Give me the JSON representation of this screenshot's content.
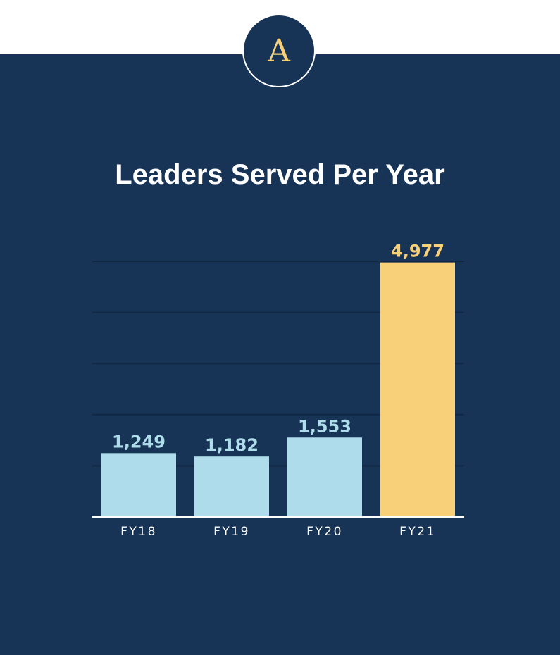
{
  "colors": {
    "background": "#173356",
    "grid": "#112845",
    "bar": "#afdcea",
    "highlight": "#f8d07a",
    "axis": "#ffffff"
  },
  "logo": {
    "letter": "A"
  },
  "chart_data": {
    "type": "bar",
    "title": "Leaders Served Per Year",
    "categories": [
      "FY18",
      "FY19",
      "FY20",
      "FY21"
    ],
    "values": [
      1249,
      1182,
      1553,
      4977
    ],
    "value_labels": [
      "1,249",
      "1,182",
      "1,553",
      "4,977"
    ],
    "highlight_index": 3,
    "ylim": [
      0,
      5000
    ],
    "grid": true,
    "legend": "none",
    "xlabel": "",
    "ylabel": ""
  }
}
